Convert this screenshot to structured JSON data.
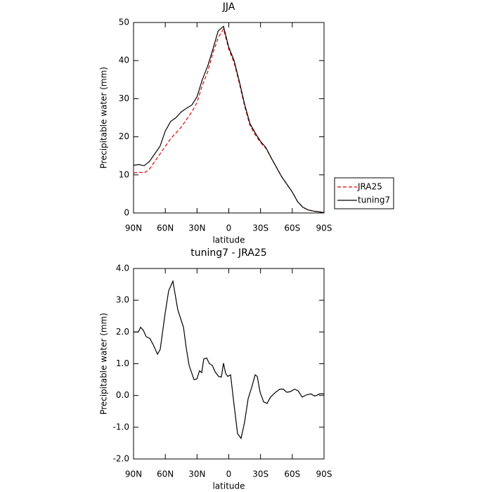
{
  "chart_data": [
    {
      "type": "line",
      "title": "JJA",
      "ylabel": "Precipitable water (mm)",
      "xlabel": "latitude",
      "x": [
        90,
        85,
        80,
        75,
        70,
        65,
        60,
        55,
        50,
        45,
        40,
        35,
        30,
        25,
        20,
        15,
        10,
        5,
        0,
        -5,
        -10,
        -15,
        -20,
        -25,
        -30,
        -35,
        -40,
        -45,
        -50,
        -55,
        -60,
        -65,
        -70,
        -75,
        -80,
        -85,
        -90
      ],
      "series": [
        {
          "name": "JRA25",
          "color": "#e00000",
          "style": "dashed",
          "values": [
            10.5,
            10.7,
            10.5,
            11.5,
            13.5,
            15.5,
            17.5,
            19.5,
            21,
            22.5,
            24.5,
            26.5,
            29,
            33.5,
            37,
            42,
            46,
            48.3,
            43,
            39.5,
            34,
            28,
            23,
            20.5,
            18.5,
            17,
            14.5,
            12,
            9.5,
            7.5,
            5.5,
            3,
            1.5,
            0.8,
            0.5,
            0.3,
            0.1
          ]
        },
        {
          "name": "tuning7",
          "color": "#000000",
          "style": "solid",
          "values": [
            12.5,
            12.7,
            12.4,
            13.5,
            15.5,
            17.5,
            21.5,
            24,
            25,
            26.5,
            27.5,
            28.3,
            30.5,
            35,
            38.5,
            43,
            47.8,
            49,
            43.5,
            40,
            34.5,
            28.5,
            23.5,
            21,
            18.8,
            17.2,
            14.5,
            12,
            9.5,
            7.5,
            5.5,
            3,
            1.5,
            0.8,
            0.5,
            0.3,
            0.1
          ]
        }
      ],
      "xlim": [
        90,
        -90
      ],
      "xticks": [
        {
          "value": 90,
          "label": "90N"
        },
        {
          "value": 60,
          "label": "60N"
        },
        {
          "value": 30,
          "label": "30N"
        },
        0,
        {
          "value": -30,
          "label": "30S"
        },
        {
          "value": -60,
          "label": "60S"
        },
        {
          "value": -90,
          "label": "90S"
        }
      ],
      "ylim": [
        0,
        50
      ],
      "yticks": [
        0,
        10,
        20,
        30,
        40,
        50
      ],
      "legend": "right"
    },
    {
      "type": "line",
      "title": "tuning7 - JRA25",
      "ylabel": "Precipitable water (mm)",
      "xlabel": "latitude",
      "x": [
        90,
        85.4,
        83.4,
        80.7,
        78,
        74.7,
        71.4,
        67.4,
        64.8,
        60.1,
        56.8,
        52.8,
        48.2,
        42.8,
        40.2,
        37.5,
        32.9,
        30.2,
        27.6,
        25.6,
        23.6,
        20.9,
        18.3,
        15.6,
        13,
        9.6,
        7,
        5,
        3,
        1,
        -1.7,
        -5,
        -8.3,
        -11.6,
        -14.9,
        -18.3,
        -21.6,
        -24.9,
        -26.9,
        -29.6,
        -32.9,
        -36.2,
        -39.5,
        -44.2,
        -48.2,
        -51.5,
        -54.8,
        -58.1,
        -62.1,
        -65.4,
        -69.4,
        -73.4,
        -77.4,
        -81.4,
        -86,
        -90
      ],
      "values": [
        2,
        2,
        2.15,
        2.05,
        1.85,
        1.8,
        1.6,
        1.3,
        1.45,
        2.6,
        3.3,
        3.6,
        2.7,
        2.15,
        1.5,
        0.95,
        0.5,
        0.52,
        0.78,
        0.72,
        1.15,
        1.18,
        1,
        0.95,
        0.75,
        0.6,
        0.58,
        1.02,
        0.7,
        0.6,
        0.65,
        -0.3,
        -1.2,
        -1.35,
        -0.85,
        -0.1,
        0.25,
        0.65,
        0.6,
        0.1,
        -0.2,
        -0.25,
        -0.05,
        0.1,
        0.2,
        0.2,
        0.1,
        0.12,
        0.2,
        0.15,
        -0.05,
        0.02,
        0.05,
        -0.02,
        0.05,
        0.05
      ],
      "color": "#000000",
      "xlim": [
        90,
        -90
      ],
      "xticks": [
        {
          "value": 90,
          "label": "90N"
        },
        {
          "value": 60,
          "label": "60N"
        },
        {
          "value": 30,
          "label": "30N"
        },
        0,
        {
          "value": -30,
          "label": "30S"
        },
        {
          "value": -60,
          "label": "60S"
        },
        {
          "value": -90,
          "label": "90S"
        }
      ],
      "ylim": [
        -2,
        4
      ],
      "yticks": [
        {
          "value": -2,
          "label": "-2.0"
        },
        {
          "value": -1,
          "label": "-1.0"
        },
        {
          "value": 0,
          "label": "0.0"
        },
        {
          "value": 1,
          "label": "1.0"
        },
        {
          "value": 2,
          "label": "2.0"
        },
        {
          "value": 3,
          "label": "3.0"
        },
        {
          "value": 4,
          "label": "4.0"
        }
      ]
    }
  ]
}
